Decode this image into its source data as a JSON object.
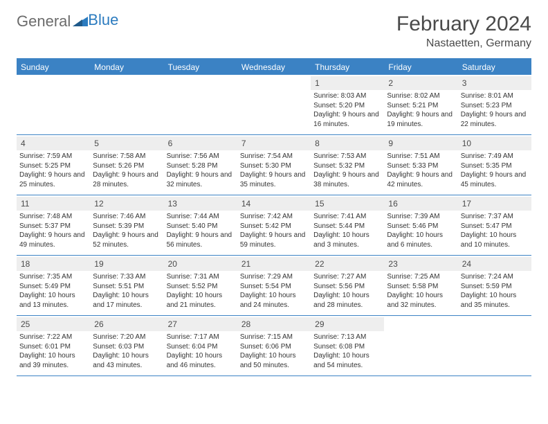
{
  "logo": {
    "text1": "General",
    "text2": "Blue"
  },
  "title": "February 2024",
  "location": "Nastaetten, Germany",
  "colors": {
    "header_bg": "#3b82c4",
    "header_text": "#ffffff",
    "daynum_bg": "#eeeeee",
    "text": "#333333",
    "rule": "#3b82c4",
    "logo_gray": "#6b6b6b",
    "logo_blue": "#2b7bbf"
  },
  "day_names": [
    "Sunday",
    "Monday",
    "Tuesday",
    "Wednesday",
    "Thursday",
    "Friday",
    "Saturday"
  ],
  "weeks": [
    [
      null,
      null,
      null,
      null,
      {
        "n": "1",
        "sr": "8:03 AM",
        "ss": "5:20 PM",
        "dl": "9 hours and 16 minutes."
      },
      {
        "n": "2",
        "sr": "8:02 AM",
        "ss": "5:21 PM",
        "dl": "9 hours and 19 minutes."
      },
      {
        "n": "3",
        "sr": "8:01 AM",
        "ss": "5:23 PM",
        "dl": "9 hours and 22 minutes."
      }
    ],
    [
      {
        "n": "4",
        "sr": "7:59 AM",
        "ss": "5:25 PM",
        "dl": "9 hours and 25 minutes."
      },
      {
        "n": "5",
        "sr": "7:58 AM",
        "ss": "5:26 PM",
        "dl": "9 hours and 28 minutes."
      },
      {
        "n": "6",
        "sr": "7:56 AM",
        "ss": "5:28 PM",
        "dl": "9 hours and 32 minutes."
      },
      {
        "n": "7",
        "sr": "7:54 AM",
        "ss": "5:30 PM",
        "dl": "9 hours and 35 minutes."
      },
      {
        "n": "8",
        "sr": "7:53 AM",
        "ss": "5:32 PM",
        "dl": "9 hours and 38 minutes."
      },
      {
        "n": "9",
        "sr": "7:51 AM",
        "ss": "5:33 PM",
        "dl": "9 hours and 42 minutes."
      },
      {
        "n": "10",
        "sr": "7:49 AM",
        "ss": "5:35 PM",
        "dl": "9 hours and 45 minutes."
      }
    ],
    [
      {
        "n": "11",
        "sr": "7:48 AM",
        "ss": "5:37 PM",
        "dl": "9 hours and 49 minutes."
      },
      {
        "n": "12",
        "sr": "7:46 AM",
        "ss": "5:39 PM",
        "dl": "9 hours and 52 minutes."
      },
      {
        "n": "13",
        "sr": "7:44 AM",
        "ss": "5:40 PM",
        "dl": "9 hours and 56 minutes."
      },
      {
        "n": "14",
        "sr": "7:42 AM",
        "ss": "5:42 PM",
        "dl": "9 hours and 59 minutes."
      },
      {
        "n": "15",
        "sr": "7:41 AM",
        "ss": "5:44 PM",
        "dl": "10 hours and 3 minutes."
      },
      {
        "n": "16",
        "sr": "7:39 AM",
        "ss": "5:46 PM",
        "dl": "10 hours and 6 minutes."
      },
      {
        "n": "17",
        "sr": "7:37 AM",
        "ss": "5:47 PM",
        "dl": "10 hours and 10 minutes."
      }
    ],
    [
      {
        "n": "18",
        "sr": "7:35 AM",
        "ss": "5:49 PM",
        "dl": "10 hours and 13 minutes."
      },
      {
        "n": "19",
        "sr": "7:33 AM",
        "ss": "5:51 PM",
        "dl": "10 hours and 17 minutes."
      },
      {
        "n": "20",
        "sr": "7:31 AM",
        "ss": "5:52 PM",
        "dl": "10 hours and 21 minutes."
      },
      {
        "n": "21",
        "sr": "7:29 AM",
        "ss": "5:54 PM",
        "dl": "10 hours and 24 minutes."
      },
      {
        "n": "22",
        "sr": "7:27 AM",
        "ss": "5:56 PM",
        "dl": "10 hours and 28 minutes."
      },
      {
        "n": "23",
        "sr": "7:25 AM",
        "ss": "5:58 PM",
        "dl": "10 hours and 32 minutes."
      },
      {
        "n": "24",
        "sr": "7:24 AM",
        "ss": "5:59 PM",
        "dl": "10 hours and 35 minutes."
      }
    ],
    [
      {
        "n": "25",
        "sr": "7:22 AM",
        "ss": "6:01 PM",
        "dl": "10 hours and 39 minutes."
      },
      {
        "n": "26",
        "sr": "7:20 AM",
        "ss": "6:03 PM",
        "dl": "10 hours and 43 minutes."
      },
      {
        "n": "27",
        "sr": "7:17 AM",
        "ss": "6:04 PM",
        "dl": "10 hours and 46 minutes."
      },
      {
        "n": "28",
        "sr": "7:15 AM",
        "ss": "6:06 PM",
        "dl": "10 hours and 50 minutes."
      },
      {
        "n": "29",
        "sr": "7:13 AM",
        "ss": "6:08 PM",
        "dl": "10 hours and 54 minutes."
      },
      null,
      null
    ]
  ],
  "labels": {
    "sunrise": "Sunrise: ",
    "sunset": "Sunset: ",
    "daylight": "Daylight: "
  }
}
